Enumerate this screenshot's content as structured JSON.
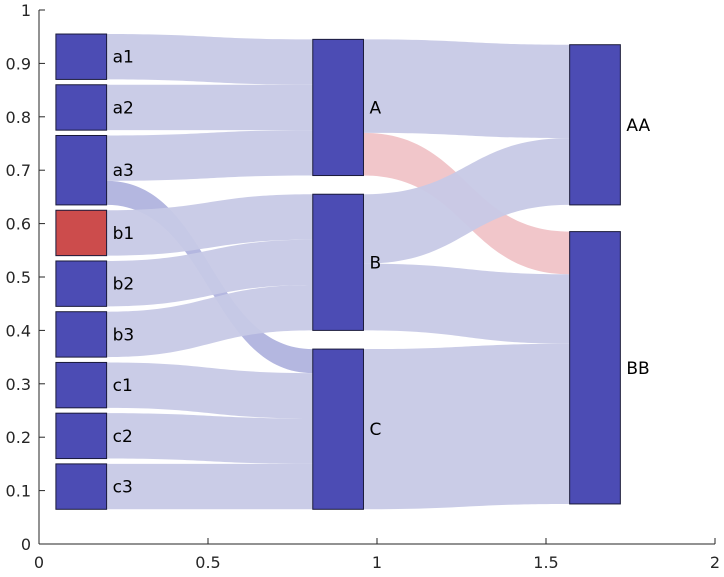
{
  "chart_data": {
    "type": "sankey",
    "title": "",
    "xlabel": "",
    "ylabel": "",
    "xlim": [
      0,
      2
    ],
    "ylim": [
      0,
      1
    ],
    "x_ticks": [
      0,
      0.5,
      1,
      1.5,
      2
    ],
    "x_tick_labels": [
      "0",
      "0.5",
      "1",
      "1.5",
      "2"
    ],
    "y_ticks": [
      0,
      0.1,
      0.2,
      0.3,
      0.4,
      0.5,
      0.6,
      0.7,
      0.8,
      0.9,
      1
    ],
    "y_tick_labels": [
      "0",
      "0.1",
      "0.2",
      "0.3",
      "0.4",
      "0.5",
      "0.6",
      "0.7",
      "0.8",
      "0.9",
      "1"
    ],
    "colors": {
      "node": "#4c4cb4",
      "node_highlight": "#cc4c4c",
      "link": "#c7c9e6",
      "link_accent": "#9b9fd6",
      "link_highlight": "#efc0c4"
    },
    "nodes": [
      {
        "id": "a1",
        "label": "a1",
        "x0": 0.05,
        "x1": 0.2,
        "y0": 0.87,
        "y1": 0.955,
        "highlight": false
      },
      {
        "id": "a2",
        "label": "a2",
        "x0": 0.05,
        "x1": 0.2,
        "y0": 0.775,
        "y1": 0.86,
        "highlight": false
      },
      {
        "id": "a3",
        "label": "a3",
        "x0": 0.05,
        "x1": 0.2,
        "y0": 0.635,
        "y1": 0.765,
        "highlight": false
      },
      {
        "id": "b1",
        "label": "b1",
        "x0": 0.05,
        "x1": 0.2,
        "y0": 0.54,
        "y1": 0.625,
        "highlight": true
      },
      {
        "id": "b2",
        "label": "b2",
        "x0": 0.05,
        "x1": 0.2,
        "y0": 0.445,
        "y1": 0.53,
        "highlight": false
      },
      {
        "id": "b3",
        "label": "b3",
        "x0": 0.05,
        "x1": 0.2,
        "y0": 0.35,
        "y1": 0.435,
        "highlight": false
      },
      {
        "id": "c1",
        "label": "c1",
        "x0": 0.05,
        "x1": 0.2,
        "y0": 0.255,
        "y1": 0.34,
        "highlight": false
      },
      {
        "id": "c2",
        "label": "c2",
        "x0": 0.05,
        "x1": 0.2,
        "y0": 0.16,
        "y1": 0.245,
        "highlight": false
      },
      {
        "id": "c3",
        "label": "c3",
        "x0": 0.05,
        "x1": 0.2,
        "y0": 0.065,
        "y1": 0.15,
        "highlight": false
      },
      {
        "id": "A",
        "label": "A",
        "x0": 0.81,
        "x1": 0.96,
        "y0": 0.69,
        "y1": 0.945,
        "highlight": false
      },
      {
        "id": "B",
        "label": "B",
        "x0": 0.81,
        "x1": 0.96,
        "y0": 0.4,
        "y1": 0.655,
        "highlight": false
      },
      {
        "id": "C",
        "label": "C",
        "x0": 0.81,
        "x1": 0.96,
        "y0": 0.065,
        "y1": 0.365,
        "highlight": false
      },
      {
        "id": "AA",
        "label": "AA",
        "x0": 1.57,
        "x1": 1.72,
        "y0": 0.635,
        "y1": 0.935,
        "highlight": false
      },
      {
        "id": "BB",
        "label": "BB",
        "x0": 1.57,
        "x1": 1.72,
        "y0": 0.075,
        "y1": 0.585,
        "highlight": false
      }
    ],
    "links": [
      {
        "source": "a1",
        "target": "A",
        "sy0": 0.87,
        "sy1": 0.955,
        "ty0": 0.86,
        "ty1": 0.945,
        "style": "normal"
      },
      {
        "source": "a2",
        "target": "A",
        "sy0": 0.775,
        "sy1": 0.86,
        "ty0": 0.775,
        "ty1": 0.86,
        "style": "normal"
      },
      {
        "source": "a3",
        "target": "A",
        "sy0": 0.68,
        "sy1": 0.765,
        "ty0": 0.69,
        "ty1": 0.775,
        "style": "normal"
      },
      {
        "source": "a3",
        "target": "C",
        "sy0": 0.635,
        "sy1": 0.68,
        "ty0": 0.32,
        "ty1": 0.365,
        "style": "accent"
      },
      {
        "source": "b1",
        "target": "B",
        "sy0": 0.54,
        "sy1": 0.625,
        "ty0": 0.57,
        "ty1": 0.655,
        "style": "normal"
      },
      {
        "source": "b2",
        "target": "B",
        "sy0": 0.445,
        "sy1": 0.53,
        "ty0": 0.485,
        "ty1": 0.57,
        "style": "normal"
      },
      {
        "source": "b3",
        "target": "B",
        "sy0": 0.35,
        "sy1": 0.435,
        "ty0": 0.4,
        "ty1": 0.485,
        "style": "normal"
      },
      {
        "source": "c1",
        "target": "C",
        "sy0": 0.255,
        "sy1": 0.34,
        "ty0": 0.235,
        "ty1": 0.32,
        "style": "normal"
      },
      {
        "source": "c2",
        "target": "C",
        "sy0": 0.16,
        "sy1": 0.245,
        "ty0": 0.15,
        "ty1": 0.235,
        "style": "normal"
      },
      {
        "source": "c3",
        "target": "C",
        "sy0": 0.065,
        "sy1": 0.15,
        "ty0": 0.065,
        "ty1": 0.15,
        "style": "normal"
      },
      {
        "source": "A",
        "target": "AA",
        "sy0": 0.77,
        "sy1": 0.945,
        "ty0": 0.76,
        "ty1": 0.935,
        "style": "normal"
      },
      {
        "source": "A",
        "target": "BB",
        "sy0": 0.69,
        "sy1": 0.77,
        "ty0": 0.505,
        "ty1": 0.585,
        "style": "highlight"
      },
      {
        "source": "B",
        "target": "AA",
        "sy0": 0.525,
        "sy1": 0.655,
        "ty0": 0.635,
        "ty1": 0.76,
        "style": "normal"
      },
      {
        "source": "B",
        "target": "BB",
        "sy0": 0.4,
        "sy1": 0.525,
        "ty0": 0.375,
        "ty1": 0.505,
        "style": "normal"
      },
      {
        "source": "C",
        "target": "BB",
        "sy0": 0.065,
        "sy1": 0.365,
        "ty0": 0.075,
        "ty1": 0.375,
        "style": "normal"
      }
    ]
  }
}
